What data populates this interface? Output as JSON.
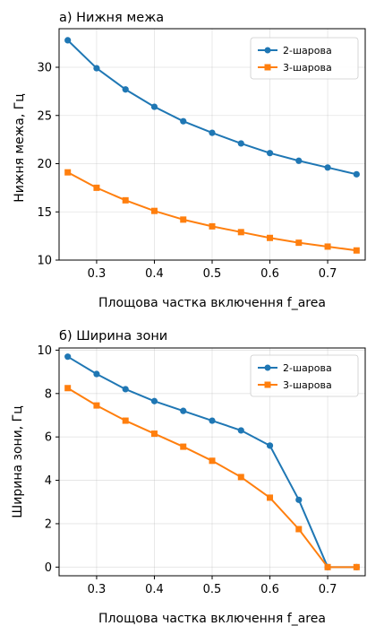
{
  "chart_data": [
    {
      "type": "line",
      "title": "а) Нижня межа",
      "xlabel": "Площова частка включення f_area",
      "ylabel": "Нижня межа, Гц",
      "xlim": [
        0.235,
        0.765
      ],
      "ylim": [
        10,
        34
      ],
      "xticks": [
        0.3,
        0.4,
        0.5,
        0.6,
        0.7
      ],
      "xtick_labels": [
        "0.3",
        "0.4",
        "0.5",
        "0.6",
        "0.7"
      ],
      "yticks": [
        10,
        15,
        20,
        25,
        30
      ],
      "ytick_labels": [
        "10",
        "15",
        "20",
        "25",
        "30"
      ],
      "grid": true,
      "legend_position": "top-right",
      "x": [
        0.25,
        0.3,
        0.35,
        0.4,
        0.45,
        0.5,
        0.55,
        0.6,
        0.65,
        0.7,
        0.75
      ],
      "series": [
        {
          "name": "2-шарова",
          "color": "#1f77b4",
          "marker": "circle",
          "values": [
            32.8,
            29.9,
            27.7,
            25.9,
            24.4,
            23.2,
            22.1,
            21.1,
            20.3,
            19.6,
            18.9
          ]
        },
        {
          "name": "3-шарова",
          "color": "#ff7f0e",
          "marker": "square",
          "values": [
            19.1,
            17.5,
            16.2,
            15.1,
            14.2,
            13.5,
            12.9,
            12.3,
            11.8,
            11.4,
            11.0
          ]
        }
      ]
    },
    {
      "type": "line",
      "title": "б) Ширина зони",
      "xlabel": "Площова частка включення f_area",
      "ylabel": "Ширина зони, Гц",
      "xlim": [
        0.235,
        0.765
      ],
      "ylim": [
        -0.4,
        10.1
      ],
      "xticks": [
        0.3,
        0.4,
        0.5,
        0.6,
        0.7
      ],
      "xtick_labels": [
        "0.3",
        "0.4",
        "0.5",
        "0.6",
        "0.7"
      ],
      "yticks": [
        0,
        2,
        4,
        6,
        8,
        10
      ],
      "ytick_labels": [
        "0",
        "2",
        "4",
        "6",
        "8",
        "10"
      ],
      "grid": true,
      "legend_position": "top-right",
      "x": [
        0.25,
        0.3,
        0.35,
        0.4,
        0.45,
        0.5,
        0.55,
        0.6,
        0.65,
        0.7,
        0.75
      ],
      "series": [
        {
          "name": "2-шарова",
          "color": "#1f77b4",
          "marker": "circle",
          "values": [
            9.7,
            8.9,
            8.2,
            7.65,
            7.2,
            6.75,
            6.3,
            5.6,
            3.1,
            0.0,
            0.0
          ]
        },
        {
          "name": "3-шарова",
          "color": "#ff7f0e",
          "marker": "square",
          "values": [
            8.25,
            7.45,
            6.75,
            6.15,
            5.55,
            4.9,
            4.15,
            3.2,
            1.75,
            0.0,
            0.0
          ]
        }
      ]
    }
  ]
}
